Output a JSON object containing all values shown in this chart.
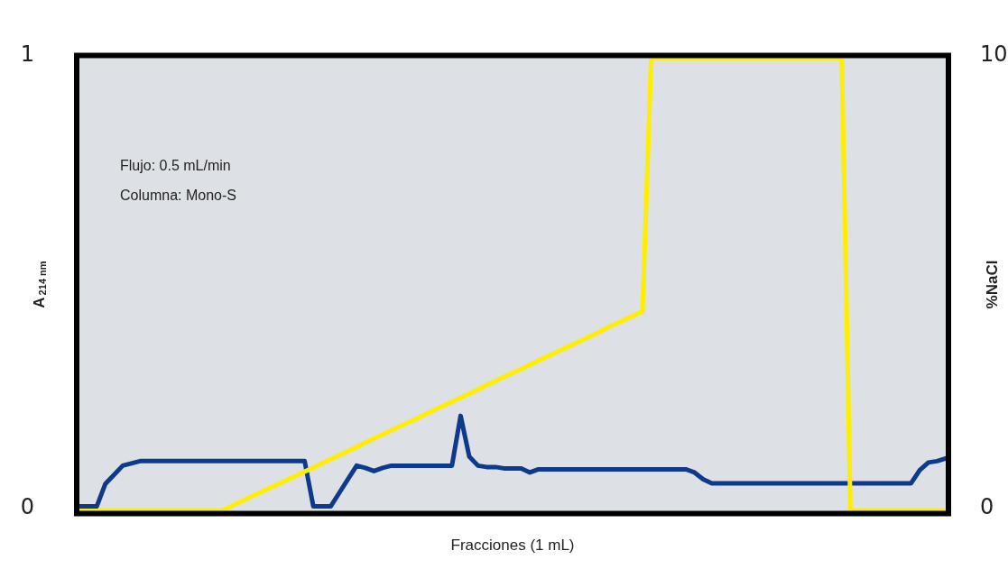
{
  "chart_data": {
    "type": "line",
    "xlabel": "Fracciones (1 mL)",
    "ylabel": "A$_{214 nm}$",
    "y2label": "%NaCl",
    "annotations": [
      "Flujo: 0.5 mL/min",
      "Columna: Mono-S"
    ],
    "categories": [
      null,
      null,
      null,
      null,
      null,
      null,
      null,
      null,
      null,
      null,
      null,
      null,
      null,
      null,
      null,
      null,
      null,
      null,
      null,
      null,
      null,
      null,
      null,
      null,
      null,
      null,
      null,
      null,
      null,
      null,
      null,
      null,
      null,
      null,
      null,
      null,
      null,
      null,
      null,
      null,
      null,
      null,
      null,
      null,
      null,
      null,
      null,
      null,
      null,
      null,
      null,
      null,
      null,
      null,
      null,
      null,
      null,
      null,
      null,
      null,
      null,
      null,
      null,
      null,
      null,
      null,
      null,
      null,
      null,
      null,
      null,
      null,
      null,
      null,
      null,
      null,
      null,
      null,
      null,
      null,
      null,
      null,
      null,
      null,
      null,
      null,
      null,
      null,
      null,
      null,
      null,
      null,
      null,
      null,
      null,
      null,
      null,
      null,
      null,
      null,
      null
    ],
    "ylim": [
      0,
      1
    ],
    "yticks": [
      0,
      1
    ],
    "y2lim": [
      0,
      10
    ],
    "y2ticks": [
      0,
      10
    ],
    "tick_labels": "y",
    "marker": "none",
    "series": [
      {
        "color": "#0d3a8c",
        "values": [
          0.01,
          0.01,
          0.01,
          0.06,
          0.08,
          0.1,
          0.105,
          0.11,
          0.11,
          0.11,
          0.11,
          0.11,
          0.11,
          0.11,
          0.11,
          0.11,
          0.11,
          0.11,
          0.11,
          0.11,
          0.11,
          0.11,
          0.11,
          0.11,
          0.11,
          0.11,
          0.11,
          0.01,
          0.01,
          0.01,
          0.04,
          0.07,
          0.1,
          0.095,
          0.088,
          0.095,
          0.1,
          0.1,
          0.1,
          0.1,
          0.1,
          0.1,
          0.1,
          0.1,
          0.21,
          0.12,
          0.1,
          0.097,
          0.097,
          0.094,
          0.094,
          0.094,
          0.085,
          0.092,
          0.092,
          0.092,
          0.092,
          0.092,
          0.092,
          0.092,
          0.092,
          0.092,
          0.092,
          0.092,
          0.092,
          0.092,
          0.092,
          0.092,
          0.092,
          0.092,
          0.092,
          0.085,
          0.07,
          0.061,
          0.061,
          0.061,
          0.061,
          0.061,
          0.061,
          0.061,
          0.061,
          0.061,
          0.061,
          0.061,
          0.061,
          0.061,
          0.061,
          0.061,
          0.061,
          0.061,
          0.061,
          0.061,
          0.061,
          0.061,
          0.061,
          0.061,
          0.061,
          0.09,
          0.107,
          0.11,
          0.116
        ]
      },
      {
        "color": "#ffee00",
        "axis": "y2",
        "values": [
          0,
          0,
          0,
          0,
          0,
          0,
          0,
          0,
          0,
          0,
          0,
          0,
          0,
          0,
          0,
          0,
          0,
          0.05,
          0.15,
          0.24,
          0.33,
          0.42,
          0.51,
          0.6,
          0.69,
          0.78,
          0.87,
          0.96,
          1.05,
          1.14,
          1.23,
          1.32,
          1.41,
          1.51,
          1.6,
          1.69,
          1.78,
          1.87,
          1.96,
          2.05,
          2.14,
          2.23,
          2.32,
          2.41,
          2.5,
          2.59,
          2.68,
          2.78,
          2.87,
          2.96,
          3.05,
          3.14,
          3.23,
          3.32,
          3.41,
          3.5,
          3.59,
          3.68,
          3.77,
          3.86,
          3.95,
          4.05,
          4.14,
          4.23,
          4.32,
          4.41,
          10,
          10,
          10,
          10,
          10,
          10,
          10,
          10,
          10,
          10,
          10,
          10,
          10,
          10,
          10,
          10,
          10,
          10,
          10,
          10,
          10,
          10,
          10,
          0,
          0,
          0,
          0,
          0,
          0,
          0,
          0,
          0,
          0,
          0,
          0
        ]
      }
    ]
  }
}
